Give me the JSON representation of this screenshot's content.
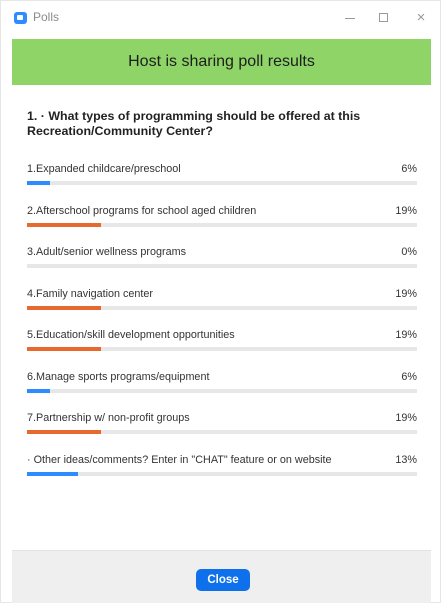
{
  "window": {
    "title": "Polls",
    "controls": {
      "minimize": "",
      "maximize": "",
      "close": "×"
    }
  },
  "banner": {
    "text": "Host is sharing poll results",
    "color": "#8ed467"
  },
  "question": {
    "text": "1. · What types of programming should be offered at this Recreation/Community Center?"
  },
  "options": [
    {
      "label": "1.Expanded childcare/preschool",
      "percent": 6,
      "percent_text": "6%",
      "color": "#2d8cff"
    },
    {
      "label": "2.Afterschool programs for school aged children",
      "percent": 19,
      "percent_text": "19%",
      "color": "#e8692f"
    },
    {
      "label": "3.Adult/senior wellness programs",
      "percent": 0,
      "percent_text": "0%",
      "color": "#2d8cff"
    },
    {
      "label": "4.Family navigation center",
      "percent": 19,
      "percent_text": "19%",
      "color": "#e8692f"
    },
    {
      "label": "5.Education/skill development opportunities",
      "percent": 19,
      "percent_text": "19%",
      "color": "#e8692f"
    },
    {
      "label": "6.Manage sports programs/equipment",
      "percent": 6,
      "percent_text": "6%",
      "color": "#2d8cff"
    },
    {
      "label": "7.Partnership w/ non-profit groups",
      "percent": 19,
      "percent_text": "19%",
      "color": "#e8692f"
    },
    {
      "label": "· Other ideas/comments? Enter in \"CHAT\" feature or on website",
      "percent": 13,
      "percent_text": "13%",
      "color": "#2d8cff"
    }
  ],
  "footer": {
    "close_label": "Close",
    "close_color": "#0e71eb"
  }
}
